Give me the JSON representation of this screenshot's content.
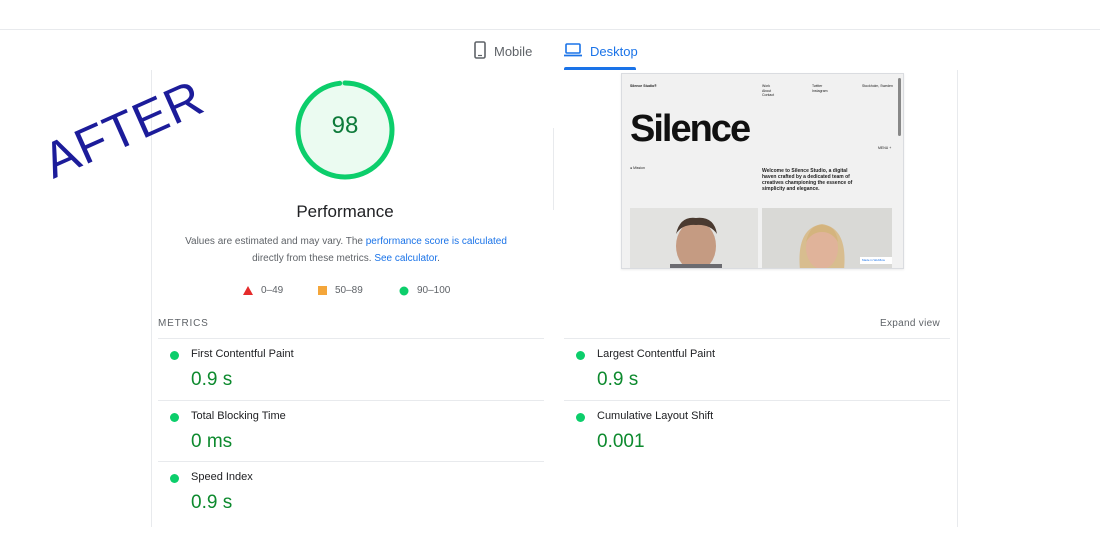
{
  "tabs": [
    {
      "label": "Mobile",
      "icon": "mobile-phone-icon",
      "active": false
    },
    {
      "label": "Desktop",
      "icon": "laptop-icon",
      "active": true
    }
  ],
  "gauge": {
    "score": "98",
    "score_value": 98,
    "title": "Performance",
    "color": "#0cce6b"
  },
  "description": {
    "text1": "Values are estimated and may vary. The ",
    "link1": "performance score is calculated",
    "text2": "directly from these metrics. ",
    "link2": "See calculator",
    "text3": "."
  },
  "legend": [
    {
      "label": "0–49",
      "shape": "triangle",
      "color": "#e52b2b"
    },
    {
      "label": "50–89",
      "shape": "square",
      "color": "#f4a63a"
    },
    {
      "label": "90–100",
      "shape": "circle",
      "color": "#0cce6b"
    }
  ],
  "preview": {
    "brand": "Silence Studio®",
    "nav_col1": [
      "Work",
      "About",
      "Contact"
    ],
    "nav_col2": [
      "Twitter",
      "Instagram"
    ],
    "location": "Stockholm, Sweden",
    "heading": "Silence",
    "menu": "MENU +",
    "mission_label": "● Mission",
    "welcome": "Welcome to Silence Studio, a digital haven crafted by a dedicated team of creatives championing the essence of simplicity and elegance.",
    "badge": "Made in Webflow"
  },
  "metrics": {
    "title": "METRICS",
    "expand": "Expand view",
    "items": [
      {
        "name": "First Contentful Paint",
        "value": "0.9 s"
      },
      {
        "name": "Largest Contentful Paint",
        "value": "0.9 s"
      },
      {
        "name": "Total Blocking Time",
        "value": "0 ms"
      },
      {
        "name": "Cumulative Layout Shift",
        "value": "0.001"
      },
      {
        "name": "Speed Index",
        "value": "0.9 s"
      }
    ]
  },
  "overlay": {
    "text": "AFTER",
    "color": "#1c1c9a"
  }
}
